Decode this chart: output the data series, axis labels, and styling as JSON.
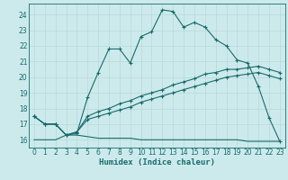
{
  "xlabel": "Humidex (Indice chaleur)",
  "bg_color": "#cceaec",
  "grid_color_major": "#b8d8da",
  "grid_color_minor": "#b8d8da",
  "line_color": "#1a6b6b",
  "xlim": [
    -0.5,
    23.5
  ],
  "ylim": [
    15.5,
    24.7
  ],
  "xticks": [
    0,
    1,
    2,
    3,
    4,
    5,
    6,
    7,
    8,
    9,
    10,
    11,
    12,
    13,
    14,
    15,
    16,
    17,
    18,
    19,
    20,
    21,
    22,
    23
  ],
  "yticks": [
    16,
    17,
    18,
    19,
    20,
    21,
    22,
    23,
    24
  ],
  "series1_x": [
    0,
    1,
    2,
    3,
    4,
    5,
    6,
    7,
    8,
    9,
    10,
    11,
    12,
    13,
    14,
    15,
    16,
    17,
    18,
    19,
    20,
    21,
    22,
    23
  ],
  "series1_y": [
    17.5,
    17.0,
    17.0,
    16.3,
    16.4,
    18.7,
    20.3,
    21.8,
    21.8,
    20.9,
    22.6,
    22.9,
    24.3,
    24.2,
    23.2,
    23.5,
    23.2,
    22.4,
    22.0,
    21.1,
    20.9,
    19.4,
    17.4,
    15.9
  ],
  "series2_x": [
    0,
    1,
    2,
    3,
    4,
    5,
    6,
    7,
    8,
    9,
    10,
    11,
    12,
    13,
    14,
    15,
    16,
    17,
    18,
    19,
    20,
    21,
    22,
    23
  ],
  "series2_y": [
    17.5,
    17.0,
    17.0,
    16.3,
    16.5,
    17.5,
    17.8,
    18.0,
    18.3,
    18.5,
    18.8,
    19.0,
    19.2,
    19.5,
    19.7,
    19.9,
    20.2,
    20.3,
    20.5,
    20.5,
    20.6,
    20.7,
    20.5,
    20.3
  ],
  "series3_x": [
    0,
    1,
    2,
    3,
    4,
    5,
    6,
    7,
    8,
    9,
    10,
    11,
    12,
    13,
    14,
    15,
    16,
    17,
    18,
    19,
    20,
    21,
    22,
    23
  ],
  "series3_y": [
    17.5,
    17.0,
    17.0,
    16.3,
    16.5,
    17.3,
    17.5,
    17.7,
    17.9,
    18.1,
    18.4,
    18.6,
    18.8,
    19.0,
    19.2,
    19.4,
    19.6,
    19.8,
    20.0,
    20.1,
    20.2,
    20.3,
    20.1,
    19.9
  ],
  "series4_x": [
    0,
    1,
    2,
    3,
    4,
    5,
    6,
    7,
    8,
    9,
    10,
    11,
    12,
    13,
    14,
    15,
    16,
    17,
    18,
    19,
    20,
    21,
    22,
    23
  ],
  "series4_y": [
    16.0,
    16.0,
    16.0,
    16.3,
    16.3,
    16.2,
    16.1,
    16.1,
    16.1,
    16.1,
    16.0,
    16.0,
    16.0,
    16.0,
    16.0,
    16.0,
    16.0,
    16.0,
    16.0,
    16.0,
    15.9,
    15.9,
    15.9,
    15.9
  ]
}
